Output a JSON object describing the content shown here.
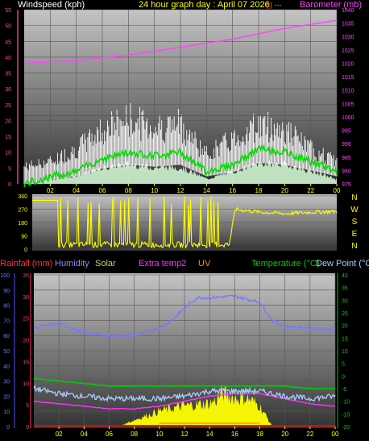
{
  "header": {
    "wind_title": "Windspeed (kph)",
    "date_title": "24 hour graph day : April 07 2026",
    "date_suffix": "(i) ---",
    "baro_title": "Barometer (mb)"
  },
  "compass_labels": [
    "N",
    "W",
    "S",
    "E",
    "N"
  ],
  "lower_legend": {
    "rainfall": "Rainfall (mm)",
    "humidity": "Humidity",
    "solar": "Solar",
    "extra": "Extra temp2",
    "uv": "UV",
    "temperature": "Temperature (°C)",
    "dewpoint": "Dew Point (°C)"
  },
  "colors": {
    "bg_light": "#bcbcbc",
    "bg_dark": "#3a3a3a",
    "wind_axis": "#ff5555",
    "wind_axis_line": "#b03060",
    "baro": "#ff44ff",
    "gust": "#ffffff",
    "avg_wind": "#00dd00",
    "wind_fill": "#d8ffd8",
    "dir": "#ffff00",
    "humidity": "#7777ff",
    "solar": "#ffff00",
    "temp": "#00cc00",
    "dew": "#aaccff",
    "extra": "#ff33ff",
    "rain": "#ff0000",
    "uv": "#ff8800",
    "ticks": "#ffff00"
  },
  "chart_data": [
    {
      "type": "line",
      "name": "wind-barometer",
      "x_ticks": [
        "02",
        "04",
        "06",
        "08",
        "10",
        "12",
        "14",
        "16",
        "18",
        "20",
        "22",
        "00"
      ],
      "x_range_hours": [
        0,
        24
      ],
      "ylabel_left": "Windspeed (kph)",
      "ylim_left": [
        0,
        55
      ],
      "y_ticks_left": [
        "0",
        "5",
        "10",
        "15",
        "20",
        "25",
        "30",
        "35",
        "40",
        "45",
        "50",
        "55"
      ],
      "ylabel_right": "Barometer (mb)",
      "ylim_right": [
        975,
        1040
      ],
      "y_ticks_right": [
        "975",
        "980",
        "985",
        "990",
        "995",
        "1000",
        "1005",
        "1010",
        "1015",
        "1020",
        "1025",
        "1030",
        "1035",
        "1040"
      ],
      "reference_line_kph": 21.5,
      "series": [
        {
          "role": "barometer",
          "x": [
            0,
            2,
            4,
            6,
            8,
            10,
            12,
            14,
            16,
            18,
            20,
            22,
            24
          ],
          "y": [
            1020,
            1020.5,
            1021,
            1022,
            1023,
            1024.5,
            1026,
            1027.5,
            1029,
            1031,
            1033,
            1034.5,
            1036
          ]
        },
        {
          "role": "gust_max",
          "x": [
            0,
            2,
            4,
            6,
            8,
            10,
            12,
            14,
            16,
            18,
            20,
            22,
            24
          ],
          "y": [
            7,
            9,
            14,
            22,
            26,
            23,
            24,
            12,
            18,
            24,
            22,
            14,
            9
          ]
        },
        {
          "role": "average",
          "x": [
            0,
            2,
            4,
            6,
            8,
            10,
            12,
            14,
            16,
            18,
            20,
            22,
            24
          ],
          "y": [
            0,
            2,
            4,
            8,
            10,
            9,
            10,
            4,
            6,
            11,
            10,
            7,
            4
          ]
        },
        {
          "role": "minimum",
          "x": [
            0,
            2,
            4,
            6,
            8,
            10,
            12,
            14,
            16,
            18,
            20,
            22,
            24
          ],
          "y": [
            0,
            1,
            2,
            4,
            5,
            4,
            4,
            1,
            3,
            5,
            5,
            3,
            1
          ]
        }
      ]
    },
    {
      "type": "line",
      "name": "wind-direction",
      "x_range_hours": [
        0,
        24
      ],
      "ylim": [
        0,
        360
      ],
      "y_ticks": [
        "0",
        "90",
        "180",
        "270",
        "360"
      ],
      "x": [
        0,
        2,
        4,
        6,
        8,
        10,
        12,
        14,
        15.5,
        16,
        18,
        20,
        22,
        24
      ],
      "y": [
        330,
        330,
        30,
        30,
        25,
        20,
        20,
        20,
        20,
        270,
        250,
        240,
        250,
        255
      ]
    },
    {
      "type": "line",
      "name": "rain-humidity-temperature",
      "x_ticks": [
        "02",
        "04",
        "06",
        "08",
        "10",
        "12",
        "14",
        "16",
        "18",
        "20",
        "22",
        "00"
      ],
      "x_range_hours": [
        0,
        24
      ],
      "ylim_left": [
        0,
        100
      ],
      "y_ticks_left": [
        "0",
        "10",
        "20",
        "30",
        "40",
        "50",
        "60",
        "70",
        "80",
        "90",
        "100"
      ],
      "ylim_rain": [
        0,
        35
      ],
      "y_ticks_rain": [
        "0",
        "5",
        "10",
        "15",
        "20",
        "25",
        "30",
        "35"
      ],
      "ylim_right": [
        -20,
        40
      ],
      "y_ticks_right": [
        "-20",
        "-15",
        "-10",
        "-5",
        "0",
        "5",
        "10",
        "15",
        "20",
        "25",
        "30",
        "35",
        "40"
      ],
      "series": [
        {
          "role": "humidity",
          "x": [
            0,
            2,
            4,
            6,
            8,
            10,
            11,
            12,
            13,
            14,
            16,
            18,
            19,
            20,
            22,
            24
          ],
          "y": [
            65,
            68,
            62,
            60,
            60,
            65,
            70,
            78,
            85,
            85,
            86,
            82,
            70,
            66,
            65,
            64
          ]
        },
        {
          "role": "temperature",
          "x": [
            0,
            2,
            4,
            6,
            8,
            10,
            12,
            14,
            16,
            18,
            20,
            22,
            24
          ],
          "y": [
            -1,
            -2,
            -3,
            -4,
            -4,
            -4,
            -4,
            -4,
            -4,
            -4,
            -4,
            -5,
            -5
          ]
        },
        {
          "role": "dew_point",
          "x": [
            0,
            2,
            4,
            6,
            8,
            10,
            12,
            14,
            16,
            18,
            20,
            22,
            24
          ],
          "y": [
            -5,
            -7,
            -8,
            -9,
            -9,
            -9,
            -8,
            -6,
            -6,
            -6,
            -8,
            -9,
            -8
          ]
        },
        {
          "role": "extra_temp2",
          "x": [
            0,
            2,
            4,
            6,
            8,
            10,
            12,
            14,
            16,
            18,
            20,
            22,
            24
          ],
          "y": [
            -10,
            -11,
            -12,
            -13,
            -13,
            -12,
            -10,
            -8,
            -7,
            -7,
            -9,
            -11,
            -12
          ]
        },
        {
          "role": "solar_percent",
          "x": [
            0,
            6.5,
            7,
            8,
            10,
            12,
            14,
            14.5,
            15,
            16,
            17,
            18,
            18.5,
            19,
            24
          ],
          "y": [
            0,
            0,
            1,
            5,
            12,
            16,
            18,
            20,
            26,
            22,
            22,
            16,
            8,
            0,
            0
          ]
        },
        {
          "role": "rainfall_mm",
          "x": [
            0,
            24
          ],
          "y": [
            0,
            0
          ]
        },
        {
          "role": "uv",
          "x": [
            0,
            24
          ],
          "y": [
            0,
            0
          ]
        }
      ]
    }
  ]
}
